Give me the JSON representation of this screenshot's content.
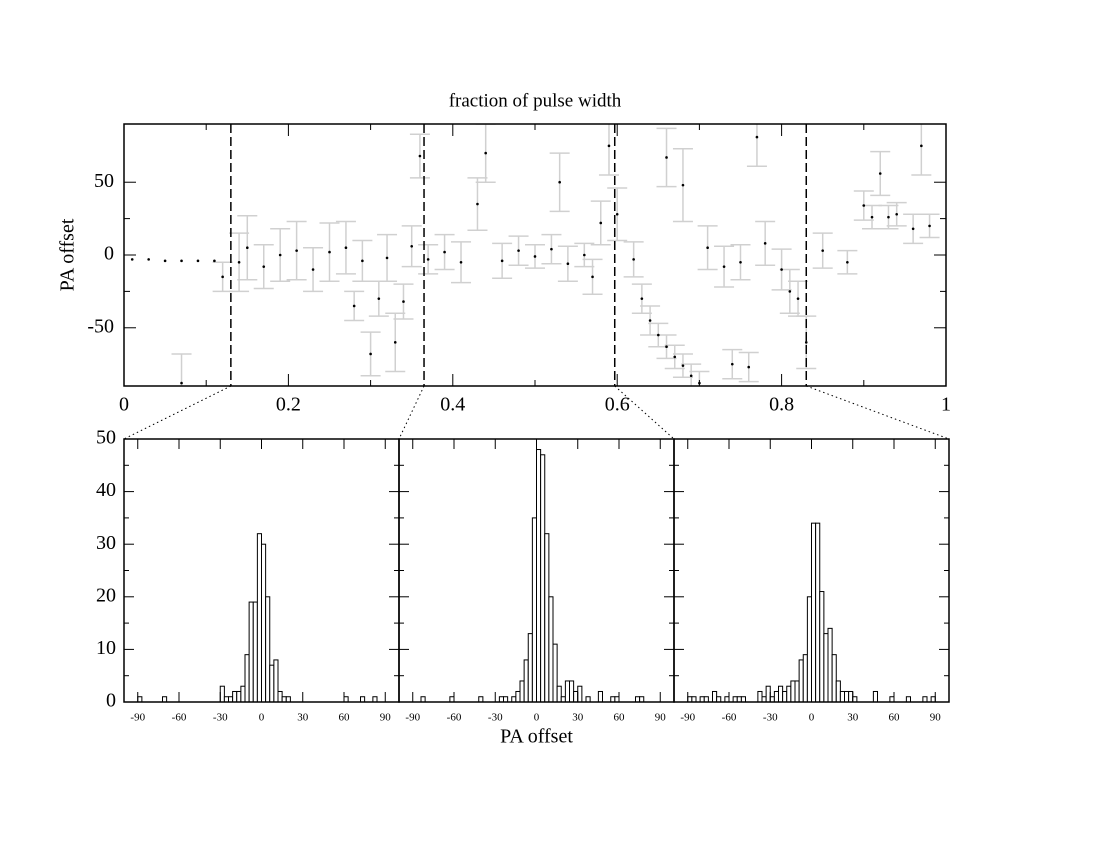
{
  "chart_data": [
    {
      "type": "scatter",
      "title": "fraction of pulse width",
      "ylabel": "PA offset",
      "x": [
        0.01,
        0.03,
        0.05,
        0.07,
        0.09,
        0.11,
        0.12,
        0.07,
        0.14,
        0.15,
        0.17,
        0.19,
        0.21,
        0.23,
        0.25,
        0.27,
        0.29,
        0.31,
        0.32,
        0.34,
        0.35,
        0.33,
        0.28,
        0.3,
        0.36,
        0.37,
        0.39,
        0.41,
        0.43,
        0.44,
        0.46,
        0.48,
        0.5,
        0.52,
        0.54,
        0.53,
        0.56,
        0.58,
        0.57,
        0.59,
        0.6,
        0.62,
        0.63,
        0.64,
        0.65,
        0.66,
        0.67,
        0.68,
        0.69,
        0.7,
        0.66,
        0.68,
        0.71,
        0.73,
        0.74,
        0.75,
        0.76,
        0.77,
        0.78,
        0.8,
        0.82,
        0.81,
        0.83,
        0.85,
        0.88,
        0.9,
        0.91,
        0.92,
        0.93,
        0.94,
        0.96,
        0.97,
        0.98
      ],
      "values": [
        -3,
        -3,
        -4,
        -4,
        -4,
        -4,
        -15,
        -88,
        -5,
        5,
        -8,
        0,
        3,
        -10,
        2,
        5,
        -4,
        -30,
        -2,
        -32,
        6,
        -60,
        -35,
        -68,
        68,
        -3,
        2,
        -5,
        35,
        70,
        -4,
        3,
        -1,
        4,
        -6,
        50,
        0,
        22,
        -15,
        75,
        28,
        -3,
        -30,
        -45,
        -55,
        -63,
        -70,
        -76,
        -83,
        -88,
        67,
        48,
        5,
        -8,
        -75,
        -5,
        -77,
        81,
        8,
        -10,
        -30,
        -25,
        -60,
        3,
        -5,
        34,
        26,
        56,
        26,
        28,
        18,
        75,
        20
      ],
      "errors": [
        0,
        0,
        0,
        0,
        0,
        0,
        10,
        20,
        20,
        22,
        15,
        18,
        20,
        15,
        20,
        18,
        14,
        12,
        16,
        12,
        14,
        20,
        10,
        15,
        15,
        10,
        12,
        14,
        18,
        20,
        12,
        10,
        8,
        10,
        12,
        20,
        8,
        15,
        12,
        20,
        18,
        12,
        10,
        10,
        8,
        8,
        8,
        8,
        8,
        8,
        20,
        25,
        15,
        14,
        10,
        12,
        10,
        20,
        15,
        14,
        12,
        15,
        18,
        12,
        8,
        10,
        8,
        15,
        8,
        8,
        10,
        20,
        8
      ],
      "vlines": [
        0.13,
        0.365,
        0.597,
        0.83
      ],
      "xlim": [
        0,
        1
      ],
      "ylim": [
        -90,
        90
      ],
      "xticks": [
        0,
        0.2,
        0.4,
        0.6,
        0.8,
        1
      ],
      "yticks": [
        -50,
        0,
        50
      ]
    },
    {
      "type": "histogram",
      "bins": [
        -90,
        -87,
        -84,
        -81,
        -78,
        -75,
        -72,
        -69,
        -66,
        -63,
        -60,
        -57,
        -54,
        -51,
        -48,
        -45,
        -42,
        -39,
        -36,
        -33,
        -30,
        -27,
        -24,
        -21,
        -18,
        -15,
        -12,
        -9,
        -6,
        -3,
        0,
        3,
        6,
        9,
        12,
        15,
        18,
        21,
        24,
        27,
        30,
        33,
        36,
        39,
        42,
        45,
        48,
        51,
        54,
        57,
        60,
        63,
        66,
        69,
        72,
        75,
        78,
        81,
        84,
        87,
        90
      ],
      "counts": [
        1,
        0,
        0,
        0,
        0,
        0,
        1,
        0,
        0,
        0,
        0,
        0,
        0,
        0,
        0,
        0,
        0,
        0,
        0,
        0,
        3,
        1,
        1,
        2,
        2,
        3,
        9,
        19,
        19,
        32,
        30,
        20,
        7,
        8,
        2,
        1,
        1,
        0,
        0,
        0,
        0,
        0,
        0,
        0,
        0,
        0,
        0,
        0,
        0,
        0,
        1,
        0,
        0,
        0,
        1,
        0,
        0,
        1,
        0,
        0
      ],
      "xlim": [
        -100,
        100
      ],
      "ylim": [
        0,
        50
      ],
      "xticks": [
        -90,
        -60,
        -30,
        0,
        30,
        60,
        90
      ],
      "yticks": [
        0,
        10,
        20,
        30,
        40,
        50
      ]
    },
    {
      "type": "histogram",
      "xlabel": "PA offset",
      "bins": [
        -90,
        -87,
        -84,
        -81,
        -78,
        -75,
        -72,
        -69,
        -66,
        -63,
        -60,
        -57,
        -54,
        -51,
        -48,
        -45,
        -42,
        -39,
        -36,
        -33,
        -30,
        -27,
        -24,
        -21,
        -18,
        -15,
        -12,
        -9,
        -6,
        -3,
        0,
        3,
        6,
        9,
        12,
        15,
        18,
        21,
        24,
        27,
        30,
        33,
        36,
        39,
        42,
        45,
        48,
        51,
        54,
        57,
        60,
        63,
        66,
        69,
        72,
        75,
        78,
        81,
        84,
        87,
        90
      ],
      "counts": [
        0,
        0,
        1,
        0,
        0,
        0,
        0,
        0,
        0,
        1,
        0,
        0,
        0,
        0,
        0,
        0,
        1,
        0,
        0,
        0,
        0,
        1,
        1,
        0,
        1,
        2,
        4,
        8,
        13,
        35,
        48,
        47,
        32,
        20,
        11,
        3,
        1,
        4,
        4,
        2,
        3,
        0,
        1,
        0,
        0,
        2,
        0,
        0,
        1,
        1,
        0,
        0,
        0,
        0,
        1,
        1,
        0,
        0,
        0,
        0
      ],
      "xlim": [
        -100,
        100
      ],
      "ylim": [
        0,
        50
      ],
      "xticks": [
        -90,
        -60,
        -30,
        0,
        30,
        60,
        90
      ]
    },
    {
      "type": "histogram",
      "bins": [
        -90,
        -87,
        -84,
        -81,
        -78,
        -75,
        -72,
        -69,
        -66,
        -63,
        -60,
        -57,
        -54,
        -51,
        -48,
        -45,
        -42,
        -39,
        -36,
        -33,
        -30,
        -27,
        -24,
        -21,
        -18,
        -15,
        -12,
        -9,
        -6,
        -3,
        0,
        3,
        6,
        9,
        12,
        15,
        18,
        21,
        24,
        27,
        30,
        33,
        36,
        39,
        42,
        45,
        48,
        51,
        54,
        57,
        60,
        63,
        66,
        69,
        72,
        75,
        78,
        81,
        84,
        87,
        90
      ],
      "counts": [
        1,
        1,
        0,
        1,
        1,
        0,
        2,
        1,
        0,
        1,
        0,
        1,
        1,
        1,
        0,
        0,
        0,
        2,
        1,
        3,
        1,
        2,
        3,
        2,
        3,
        4,
        4,
        8,
        9,
        20,
        34,
        34,
        21,
        13,
        14,
        9,
        4,
        2,
        2,
        2,
        1,
        0,
        0,
        0,
        0,
        2,
        0,
        0,
        0,
        1,
        0,
        0,
        0,
        1,
        0,
        0,
        0,
        1,
        0,
        1
      ],
      "xlim": [
        -100,
        100
      ],
      "ylim": [
        0,
        50
      ],
      "xticks": [
        -90,
        -60,
        -30,
        0,
        30,
        60,
        90
      ]
    }
  ]
}
